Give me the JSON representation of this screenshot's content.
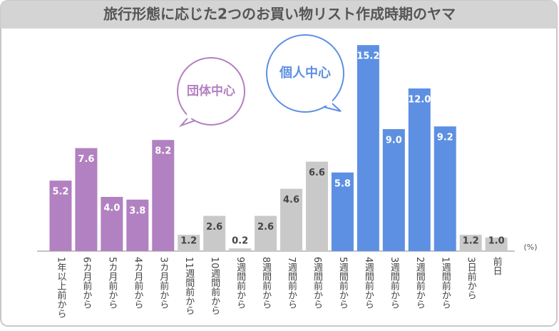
{
  "chart_data": {
    "type": "bar",
    "title": "旅行形態に応じた2つのお買い物リスト作成時期のヤマ",
    "unit_label": "(%)",
    "annotations": [
      "団体中心",
      "個人中心"
    ],
    "categories": [
      "1年以上前から",
      "6カ月前から",
      "5カ月前から",
      "4カ月前から",
      "3カ月前から",
      "11週間前から",
      "10週間前から",
      "9週間前から",
      "8週間前から",
      "7週間前から",
      "6週間前から",
      "5週間前から",
      "4週間前から",
      "3週間前から",
      "2週間前から",
      "1週間前から",
      "3日前から",
      "前日"
    ],
    "values": [
      5.2,
      7.6,
      4.0,
      3.8,
      8.2,
      1.2,
      2.6,
      0.2,
      2.6,
      4.6,
      6.6,
      5.8,
      15.2,
      9.0,
      12.0,
      9.2,
      1.2,
      1.0
    ],
    "value_labels": [
      "5.2",
      "7.6",
      "4.0",
      "3.8",
      "8.2",
      "1.2",
      "2.6",
      "0.2",
      "2.6",
      "4.6",
      "6.6",
      "5.8",
      "15.2",
      "9.0",
      "12.0",
      "9.2",
      "1.2",
      "1.0"
    ],
    "colors": [
      "#b281c1",
      "#b281c1",
      "#b281c1",
      "#b281c1",
      "#b281c1",
      "#c9c9c9",
      "#c9c9c9",
      "#c9c9c9",
      "#c9c9c9",
      "#c9c9c9",
      "#c9c9c9",
      "#5d90e2",
      "#5d90e2",
      "#5d90e2",
      "#5d90e2",
      "#5d90e2",
      "#c9c9c9",
      "#c9c9c9"
    ],
    "ylim": [
      0,
      16
    ]
  }
}
